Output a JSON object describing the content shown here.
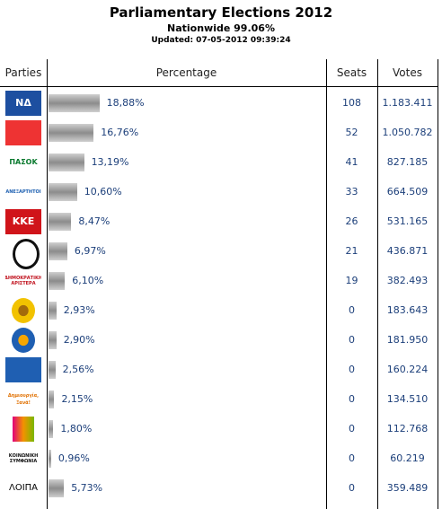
{
  "header": {
    "title": "Parliamentary Elections 2012",
    "subtitle": "Nationwide 99.06%",
    "updated": "Updated: 07-05-2012 09:39:24"
  },
  "table": {
    "columns": [
      "Parties",
      "Percentage",
      "Seats",
      "Votes"
    ],
    "rows": [
      {
        "logo": "ΝΔ",
        "percent": 18.88,
        "percent_label": "18,88%",
        "seats": "108",
        "votes": "1.183.411"
      },
      {
        "percent": 16.76,
        "percent_label": "16,76%",
        "seats": "52",
        "votes": "1.050.782"
      },
      {
        "logo": "ΠΑΣΟΚ",
        "percent": 13.19,
        "percent_label": "13,19%",
        "seats": "41",
        "votes": "827.185"
      },
      {
        "logo": "ΑΝΕΞΑΡΤΗΤΟΙ",
        "percent": 10.6,
        "percent_label": "10,60%",
        "seats": "33",
        "votes": "664.509"
      },
      {
        "logo": "KKE",
        "percent": 8.47,
        "percent_label": "8,47%",
        "seats": "26",
        "votes": "531.165"
      },
      {
        "percent": 6.97,
        "percent_label": "6,97%",
        "seats": "21",
        "votes": "436.871"
      },
      {
        "logo": "ΔΗΜΟΚΡΑΤΙΚΗ ΑΡΙΣΤΕΡΑ",
        "percent": 6.1,
        "percent_label": "6,10%",
        "seats": "19",
        "votes": "382.493"
      },
      {
        "percent": 2.93,
        "percent_label": "2,93%",
        "seats": "0",
        "votes": "183.643"
      },
      {
        "percent": 2.9,
        "percent_label": "2,90%",
        "seats": "0",
        "votes": "181.950"
      },
      {
        "percent": 2.56,
        "percent_label": "2,56%",
        "seats": "0",
        "votes": "160.224"
      },
      {
        "logo": "Δημιουργία, Ξανά!",
        "percent": 2.15,
        "percent_label": "2,15%",
        "seats": "0",
        "votes": "134.510"
      },
      {
        "percent": 1.8,
        "percent_label": "1,80%",
        "seats": "0",
        "votes": "112.768"
      },
      {
        "logo": "ΚΟΙΝΩΝΙΚΗ ΣΥΜΦΩΝΙΑ",
        "percent": 0.96,
        "percent_label": "0,96%",
        "seats": "0",
        "votes": "60.219"
      },
      {
        "logo": "ΛΟΙΠΑ",
        "percent": 5.73,
        "percent_label": "5,73%",
        "seats": "0",
        "votes": "359.489"
      }
    ]
  }
}
